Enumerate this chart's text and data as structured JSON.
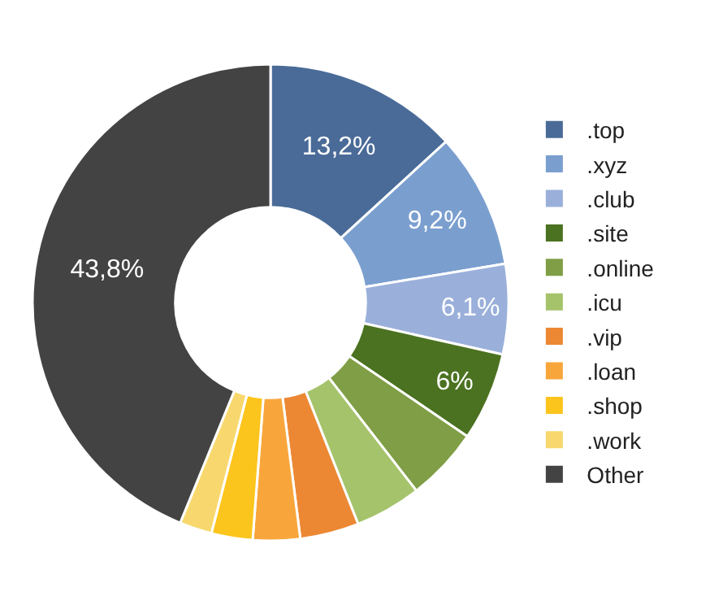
{
  "chart_data": {
    "type": "donut",
    "categories": [
      ".top",
      ".xyz",
      ".club",
      ".site",
      ".online",
      ".icu",
      ".vip",
      ".loan",
      ".shop",
      ".work",
      "Other"
    ],
    "values": [
      13.2,
      9.2,
      6.1,
      6,
      5,
      4.5,
      4,
      3.2,
      2.8,
      2.2,
      43.8
    ],
    "value_labels": [
      "13,2%",
      "9,2%",
      "6,1%",
      "6%",
      null,
      null,
      null,
      null,
      null,
      null,
      "43,8%"
    ],
    "colors": [
      "#4a6b98",
      "#7a9fcf",
      "#9ab0da",
      "#4b7220",
      "#7f9e45",
      "#a5c36b",
      "#ec8833",
      "#f8a63b",
      "#fcc51d",
      "#f8d86e",
      "#434343"
    ],
    "legend": "right"
  }
}
